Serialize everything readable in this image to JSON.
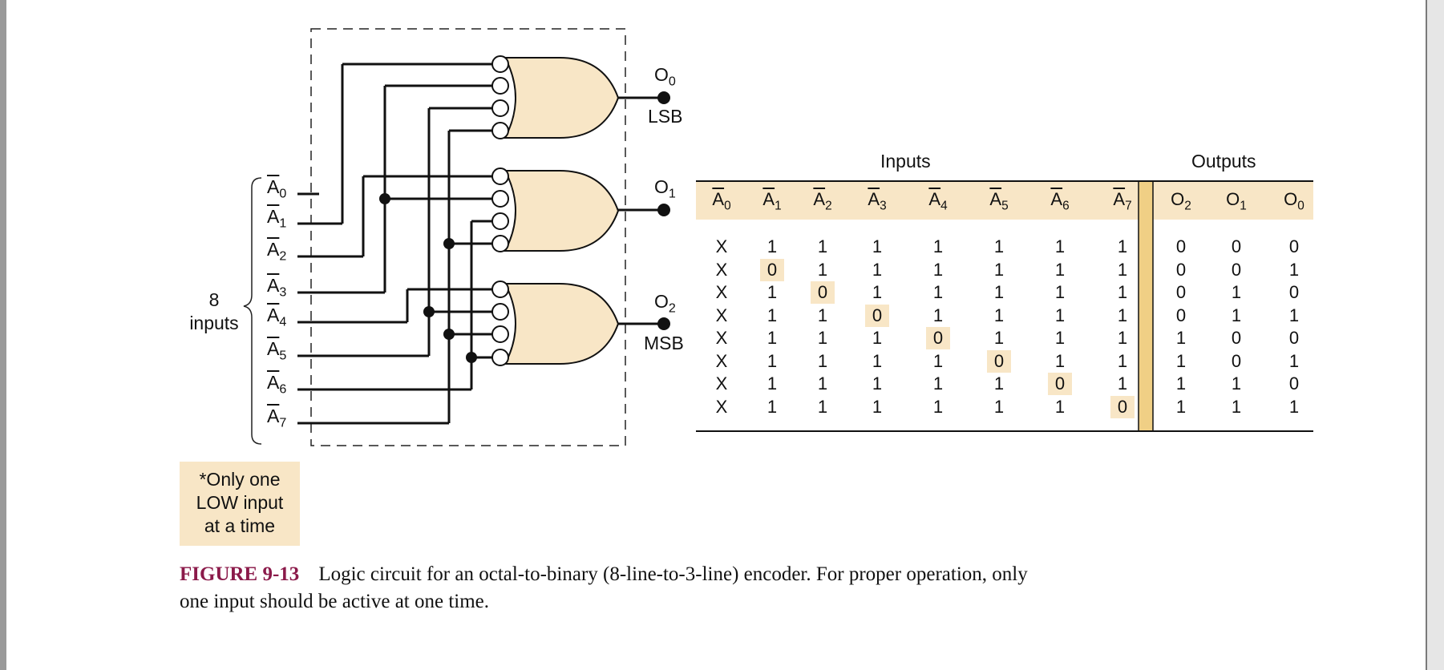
{
  "inputs_brace": {
    "count": "8",
    "word": "inputs"
  },
  "input_labels": [
    "A0",
    "A1",
    "A2",
    "A3",
    "A4",
    "A5",
    "A6",
    "A7"
  ],
  "output_labels": [
    {
      "name": "O0",
      "tag": "LSB"
    },
    {
      "name": "O1",
      "tag": ""
    },
    {
      "name": "O2",
      "tag": "MSB"
    }
  ],
  "note": "*Only one\nLOW input\nat a time",
  "caption": {
    "label": "FIGURE 9-13",
    "text": "Logic circuit for an octal-to-binary (8-line-to-3-line) encoder. For proper operation, only one input should be active at one time."
  },
  "truth_table": {
    "inputs_heading": "Inputs",
    "outputs_heading": "Outputs",
    "input_columns": [
      "A0",
      "A1",
      "A2",
      "A3",
      "A4",
      "A5",
      "A6",
      "A7"
    ],
    "output_columns": [
      "O2",
      "O1",
      "O0"
    ],
    "rows": [
      {
        "inputs": [
          "X",
          "1",
          "1",
          "1",
          "1",
          "1",
          "1",
          "1"
        ],
        "outputs": [
          "0",
          "0",
          "0"
        ],
        "low_index": -1
      },
      {
        "inputs": [
          "X",
          "0",
          "1",
          "1",
          "1",
          "1",
          "1",
          "1"
        ],
        "outputs": [
          "0",
          "0",
          "1"
        ],
        "low_index": 1
      },
      {
        "inputs": [
          "X",
          "1",
          "0",
          "1",
          "1",
          "1",
          "1",
          "1"
        ],
        "outputs": [
          "0",
          "1",
          "0"
        ],
        "low_index": 2
      },
      {
        "inputs": [
          "X",
          "1",
          "1",
          "0",
          "1",
          "1",
          "1",
          "1"
        ],
        "outputs": [
          "0",
          "1",
          "1"
        ],
        "low_index": 3
      },
      {
        "inputs": [
          "X",
          "1",
          "1",
          "1",
          "0",
          "1",
          "1",
          "1"
        ],
        "outputs": [
          "1",
          "0",
          "0"
        ],
        "low_index": 4
      },
      {
        "inputs": [
          "X",
          "1",
          "1",
          "1",
          "1",
          "0",
          "1",
          "1"
        ],
        "outputs": [
          "1",
          "0",
          "1"
        ],
        "low_index": 5
      },
      {
        "inputs": [
          "X",
          "1",
          "1",
          "1",
          "1",
          "1",
          "0",
          "1"
        ],
        "outputs": [
          "1",
          "1",
          "0"
        ],
        "low_index": 6
      },
      {
        "inputs": [
          "X",
          "1",
          "1",
          "1",
          "1",
          "1",
          "1",
          "0"
        ],
        "outputs": [
          "1",
          "1",
          "1"
        ],
        "low_index": 7
      }
    ]
  },
  "colors": {
    "gate_fill": "#f8e6c6",
    "header_fill": "#f8e6c6",
    "divider": "#f0cf85",
    "caption_label": "#8b1a4a"
  }
}
